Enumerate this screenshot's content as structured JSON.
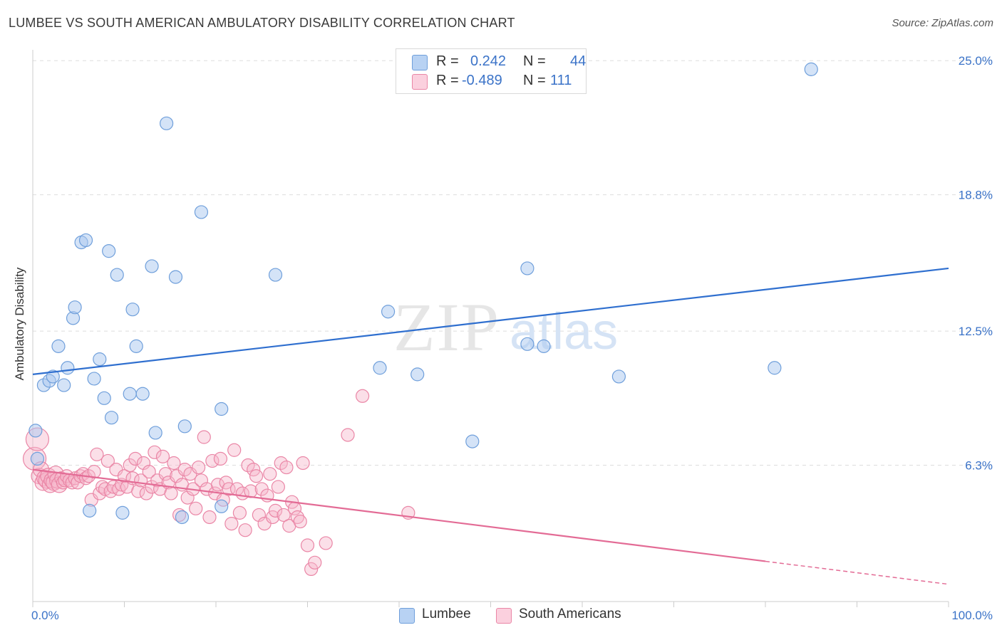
{
  "header": {
    "title": "LUMBEE VS SOUTH AMERICAN AMBULATORY DISABILITY CORRELATION CHART",
    "source": "Source: ZipAtlas.com"
  },
  "watermark": {
    "zip": "ZIP",
    "atlas": "atlas"
  },
  "stats": {
    "lumbee": {
      "r_label": "R =",
      "r_value": "0.242",
      "n_label": "N =",
      "n_value": "44"
    },
    "south_americans": {
      "r_label": "R =",
      "r_value": "-0.489",
      "n_label": "N =",
      "n_value": "111"
    }
  },
  "legend": {
    "lumbee": "Lumbee",
    "south_americans": "South Americans"
  },
  "colors": {
    "blue_fill": "#a9c8f0",
    "blue_stroke": "#6f9fdb",
    "blue_line": "#2f6fcf",
    "pink_fill": "#f7b8cc",
    "pink_stroke": "#ea86a6",
    "pink_line": "#e36b95",
    "grid": "#dddddd",
    "axis_label": "#3b73c8"
  },
  "chart_data": {
    "type": "scatter",
    "title": "LUMBEE VS SOUTH AMERICAN AMBULATORY DISABILITY CORRELATION CHART",
    "xlabel": "",
    "ylabel": "Ambulatory Disability",
    "xlim": [
      0,
      100
    ],
    "ylim": [
      0,
      25.5
    ],
    "x_tick_labels": [
      "0.0%",
      "100.0%"
    ],
    "y_ticks": [
      6.3,
      12.5,
      18.8,
      25.0
    ],
    "y_tick_labels": [
      "6.3%",
      "12.5%",
      "18.8%",
      "25.0%"
    ],
    "grid": true,
    "legend_position": "bottom-center",
    "series": [
      {
        "name": "Lumbee",
        "trend": {
          "x": [
            0,
            100
          ],
          "y": [
            10.5,
            15.4
          ]
        },
        "points": [
          [
            0.3,
            7.9
          ],
          [
            0.5,
            6.6
          ],
          [
            1.2,
            10.0
          ],
          [
            1.8,
            10.2
          ],
          [
            2.2,
            10.4
          ],
          [
            2.8,
            11.8
          ],
          [
            3.4,
            10.0
          ],
          [
            3.8,
            10.8
          ],
          [
            4.4,
            13.1
          ],
          [
            4.6,
            13.6
          ],
          [
            5.3,
            16.6
          ],
          [
            5.8,
            16.7
          ],
          [
            6.2,
            4.2
          ],
          [
            6.7,
            10.3
          ],
          [
            7.3,
            11.2
          ],
          [
            7.8,
            9.4
          ],
          [
            8.3,
            16.2
          ],
          [
            8.6,
            8.5
          ],
          [
            9.2,
            15.1
          ],
          [
            9.8,
            4.1
          ],
          [
            10.6,
            9.6
          ],
          [
            10.9,
            13.5
          ],
          [
            11.3,
            11.8
          ],
          [
            12.0,
            9.6
          ],
          [
            13.0,
            15.5
          ],
          [
            13.4,
            7.8
          ],
          [
            14.6,
            22.1
          ],
          [
            15.6,
            15.0
          ],
          [
            16.3,
            3.9
          ],
          [
            16.6,
            8.1
          ],
          [
            18.4,
            18.0
          ],
          [
            20.6,
            8.9
          ],
          [
            20.6,
            4.4
          ],
          [
            26.5,
            15.1
          ],
          [
            37.9,
            10.8
          ],
          [
            38.8,
            13.4
          ],
          [
            42.0,
            10.5
          ],
          [
            48.0,
            7.4
          ],
          [
            54.0,
            15.4
          ],
          [
            54.0,
            11.9
          ],
          [
            55.8,
            11.8
          ],
          [
            64.0,
            10.4
          ],
          [
            81.0,
            10.8
          ],
          [
            85.0,
            24.6
          ]
        ]
      },
      {
        "name": "South Americans",
        "trend": {
          "x": [
            0,
            100
          ],
          "y": [
            6.1,
            0.8
          ]
        },
        "points": [
          [
            0.2,
            6.6
          ],
          [
            0.5,
            7.5
          ],
          [
            0.7,
            5.8
          ],
          [
            0.9,
            6.1
          ],
          [
            1.1,
            5.5
          ],
          [
            1.3,
            5.7
          ],
          [
            1.5,
            5.6
          ],
          [
            1.7,
            5.8
          ],
          [
            1.9,
            5.4
          ],
          [
            2.1,
            5.6
          ],
          [
            2.3,
            5.5
          ],
          [
            2.5,
            5.9
          ],
          [
            2.7,
            5.6
          ],
          [
            2.9,
            5.4
          ],
          [
            3.1,
            5.7
          ],
          [
            3.3,
            5.5
          ],
          [
            3.5,
            5.6
          ],
          [
            3.7,
            5.8
          ],
          [
            4.0,
            5.6
          ],
          [
            4.3,
            5.5
          ],
          [
            4.6,
            5.7
          ],
          [
            4.9,
            5.5
          ],
          [
            5.2,
            5.8
          ],
          [
            5.5,
            5.9
          ],
          [
            5.8,
            5.7
          ],
          [
            6.1,
            5.8
          ],
          [
            6.4,
            4.7
          ],
          [
            6.7,
            6.0
          ],
          [
            7.0,
            6.8
          ],
          [
            7.3,
            5.0
          ],
          [
            7.6,
            5.3
          ],
          [
            7.9,
            5.2
          ],
          [
            8.2,
            6.5
          ],
          [
            8.5,
            5.1
          ],
          [
            8.8,
            5.3
          ],
          [
            9.1,
            6.1
          ],
          [
            9.4,
            5.2
          ],
          [
            9.7,
            5.4
          ],
          [
            10.0,
            5.8
          ],
          [
            10.3,
            5.3
          ],
          [
            10.6,
            6.3
          ],
          [
            10.9,
            5.7
          ],
          [
            11.2,
            6.6
          ],
          [
            11.5,
            5.1
          ],
          [
            11.8,
            5.6
          ],
          [
            12.1,
            6.4
          ],
          [
            12.4,
            5.0
          ],
          [
            12.7,
            6.0
          ],
          [
            13.0,
            5.3
          ],
          [
            13.3,
            6.9
          ],
          [
            13.6,
            5.6
          ],
          [
            13.9,
            5.2
          ],
          [
            14.2,
            6.7
          ],
          [
            14.5,
            5.9
          ],
          [
            14.8,
            5.5
          ],
          [
            15.1,
            5.0
          ],
          [
            15.4,
            6.4
          ],
          [
            15.7,
            5.8
          ],
          [
            16.0,
            4.0
          ],
          [
            16.3,
            5.4
          ],
          [
            16.6,
            6.1
          ],
          [
            16.9,
            4.8
          ],
          [
            17.2,
            5.9
          ],
          [
            17.5,
            5.2
          ],
          [
            17.8,
            4.3
          ],
          [
            18.1,
            6.2
          ],
          [
            18.4,
            5.6
          ],
          [
            18.7,
            7.6
          ],
          [
            19.0,
            5.2
          ],
          [
            19.3,
            3.9
          ],
          [
            19.6,
            6.5
          ],
          [
            19.9,
            5.0
          ],
          [
            20.2,
            5.4
          ],
          [
            20.5,
            6.6
          ],
          [
            20.8,
            4.7
          ],
          [
            21.1,
            5.5
          ],
          [
            21.4,
            5.2
          ],
          [
            21.7,
            3.6
          ],
          [
            22.0,
            7.0
          ],
          [
            22.3,
            5.2
          ],
          [
            22.6,
            4.1
          ],
          [
            22.9,
            5.0
          ],
          [
            23.2,
            3.3
          ],
          [
            23.5,
            6.3
          ],
          [
            23.8,
            5.1
          ],
          [
            24.1,
            6.1
          ],
          [
            24.4,
            5.8
          ],
          [
            24.7,
            4.0
          ],
          [
            25.0,
            5.2
          ],
          [
            25.3,
            3.6
          ],
          [
            25.6,
            4.9
          ],
          [
            25.9,
            5.9
          ],
          [
            26.2,
            3.9
          ],
          [
            26.5,
            4.2
          ],
          [
            26.8,
            5.3
          ],
          [
            27.1,
            6.4
          ],
          [
            27.4,
            4.0
          ],
          [
            27.7,
            6.2
          ],
          [
            28.0,
            3.5
          ],
          [
            28.3,
            4.6
          ],
          [
            28.6,
            4.3
          ],
          [
            28.9,
            3.9
          ],
          [
            29.2,
            3.7
          ],
          [
            29.5,
            6.4
          ],
          [
            30.0,
            2.6
          ],
          [
            30.4,
            1.5
          ],
          [
            30.8,
            1.8
          ],
          [
            32.0,
            2.7
          ],
          [
            34.4,
            7.7
          ],
          [
            36.0,
            9.5
          ],
          [
            41.0,
            4.1
          ]
        ]
      }
    ]
  }
}
